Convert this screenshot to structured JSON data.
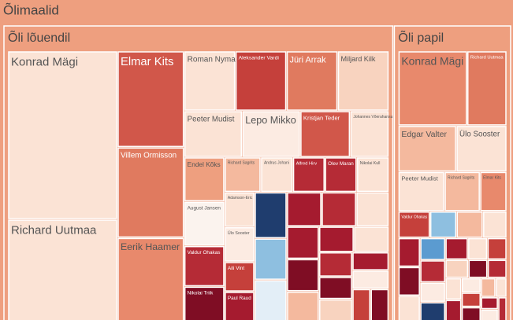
{
  "chart_data": {
    "type": "treemap",
    "title": "Õlimaalid",
    "color": "#ee9f7f",
    "groups": [
      {
        "name": "Õli lõuendil",
        "color": "#ee9f7f",
        "items": [
          {
            "name": "Konrad Mägi",
            "value": 247,
            "color": "#fbe3d5"
          },
          {
            "name": "Richard Uutmaa",
            "value": 150,
            "color": "#fbe3d5"
          },
          {
            "name": "Elmar Kits",
            "value": 86,
            "color": "#d1574a"
          },
          {
            "name": "Villem Ormisson",
            "value": 81,
            "color": "#e07a5f"
          },
          {
            "name": "Eerik Haamer",
            "value": 75,
            "color": "#e8896c"
          },
          {
            "name": "Roman Nyman",
            "value": 41,
            "color": "#fbe3d5"
          },
          {
            "name": "Aleksander Vardi",
            "value": 41,
            "color": "#c5403b"
          },
          {
            "name": "Jüri Arrak",
            "value": 41,
            "color": "#e07a5f"
          },
          {
            "name": "Miljard Kilk",
            "value": 41,
            "color": "#f8d3bf"
          },
          {
            "name": "Peeter Mudist",
            "value": 36,
            "color": "#fbe3d5"
          },
          {
            "name": "Lepo Mikko",
            "value": 36,
            "color": "#fcebe2"
          },
          {
            "name": "Kristjan Teder",
            "value": 31,
            "color": "#d1574a"
          },
          {
            "name": "Johannes Võerahansu",
            "value": 24,
            "color": "#fbe3d5"
          },
          {
            "name": "Endel Kõks",
            "value": 24,
            "color": "#ee9f7f"
          },
          {
            "name": "August Jansen",
            "value": 24,
            "color": "#fbf3ee"
          },
          {
            "name": "Valdur Ohakas",
            "value": 22,
            "color": "#b52b36"
          },
          {
            "name": "Nikolai Triik",
            "value": 19,
            "color": "#7f0d24"
          },
          {
            "name": "Richard Sagrits",
            "value": 17,
            "color": "#f4b99e"
          },
          {
            "name": "Andrus Johani",
            "value": 15,
            "color": "#fbe3d5"
          },
          {
            "name": "Alfred Hirv",
            "value": 15,
            "color": "#b52b36"
          },
          {
            "name": "Olev Maran",
            "value": 15,
            "color": "#b52b36"
          },
          {
            "name": "Nikolai Kull",
            "value": 15,
            "color": "#fbe3d5"
          },
          {
            "name": "Adamson-Eric",
            "value": 14,
            "color": "#fbe3d5"
          },
          {
            "name": "Ülo Sooster",
            "value": 14,
            "color": "#fcebe2"
          },
          {
            "name": "Aili Vint",
            "value": 12,
            "color": "#c5403b"
          },
          {
            "name": "Paul Raud",
            "value": 12,
            "color": "#a51b2f"
          },
          {
            "name": null,
            "value": 20,
            "color": "#1f3d6e"
          },
          {
            "name": null,
            "value": 18,
            "color": "#8ebfe0"
          },
          {
            "name": null,
            "value": 18,
            "color": "#e3eef7"
          },
          {
            "name": null,
            "value": 16,
            "color": "#a51b2f"
          },
          {
            "name": null,
            "value": 16,
            "color": "#b52b36"
          },
          {
            "name": null,
            "value": 15,
            "color": "#fbe3d5"
          },
          {
            "name": null,
            "value": 14,
            "color": "#a51b2f"
          },
          {
            "name": null,
            "value": 14,
            "color": "#7f0d24"
          },
          {
            "name": null,
            "value": 13,
            "color": "#f4b99e"
          },
          {
            "name": null,
            "value": 12,
            "color": "#a51b2f"
          },
          {
            "name": null,
            "value": 12,
            "color": "#fbe3d5"
          },
          {
            "name": null,
            "value": 11,
            "color": "#b52b36"
          },
          {
            "name": null,
            "value": 10,
            "color": "#7f0d24"
          },
          {
            "name": null,
            "value": 10,
            "color": "#f8d3bf"
          },
          {
            "name": null,
            "value": 9,
            "color": "#a51b2f"
          },
          {
            "name": null,
            "value": 9,
            "color": "#fcebe2"
          },
          {
            "name": null,
            "value": 8,
            "color": "#c5403b"
          },
          {
            "name": null,
            "value": 8,
            "color": "#7f0d24"
          }
        ]
      },
      {
        "name": "Õli papil",
        "color": "#ee9f7f",
        "items": [
          {
            "name": "Konrad Mägi",
            "value": 73,
            "color": "#e8896c"
          },
          {
            "name": "Richard Uutmaa",
            "value": 42,
            "color": "#e07a5f"
          },
          {
            "name": "Edgar Valter",
            "value": 38,
            "color": "#f4b99e"
          },
          {
            "name": "Ülo Sooster",
            "value": 33,
            "color": "#fbe3d5"
          },
          {
            "name": "Peeter Mudist",
            "value": 26,
            "color": "#fbe3d5"
          },
          {
            "name": "Richard Sagrits",
            "value": 20,
            "color": "#f4b99e"
          },
          {
            "name": "Elmar Kits",
            "value": 15,
            "color": "#e8896c"
          },
          {
            "name": "Valdur Ohakas",
            "value": 12,
            "color": "#c5403b"
          },
          {
            "name": null,
            "value": 10,
            "color": "#8ebfe0"
          },
          {
            "name": null,
            "value": 10,
            "color": "#f4b99e"
          },
          {
            "name": null,
            "value": 9,
            "color": "#fbe3d5"
          },
          {
            "name": null,
            "value": 9,
            "color": "#a51b2f"
          },
          {
            "name": null,
            "value": 9,
            "color": "#7f0d24"
          },
          {
            "name": null,
            "value": 8,
            "color": "#fbe3d5"
          },
          {
            "name": null,
            "value": 8,
            "color": "#5b9bd0"
          },
          {
            "name": null,
            "value": 8,
            "color": "#b52b36"
          },
          {
            "name": null,
            "value": 7,
            "color": "#fcebe2"
          },
          {
            "name": null,
            "value": 7,
            "color": "#1f3d6e"
          },
          {
            "name": null,
            "value": 7,
            "color": "#a51b2f"
          },
          {
            "name": null,
            "value": 6,
            "color": "#fbe3d5"
          },
          {
            "name": null,
            "value": 6,
            "color": "#c5403b"
          },
          {
            "name": null,
            "value": 6,
            "color": "#f8d3bf"
          },
          {
            "name": null,
            "value": 5,
            "color": "#7f0d24"
          },
          {
            "name": null,
            "value": 5,
            "color": "#b52b36"
          },
          {
            "name": null,
            "value": 5,
            "color": "#fbe3d5"
          },
          {
            "name": null,
            "value": 5,
            "color": "#a51b2f"
          },
          {
            "name": null,
            "value": 4,
            "color": "#fcebe2"
          },
          {
            "name": null,
            "value": 4,
            "color": "#c5403b"
          },
          {
            "name": null,
            "value": 4,
            "color": "#7f0d24"
          },
          {
            "name": null,
            "value": 4,
            "color": "#f4b99e"
          },
          {
            "name": null,
            "value": 3,
            "color": "#fbe3d5"
          },
          {
            "name": null,
            "value": 3,
            "color": "#a51b2f"
          },
          {
            "name": null,
            "value": 3,
            "color": "#fcebe2"
          },
          {
            "name": null,
            "value": 3,
            "color": "#b52b36"
          }
        ]
      }
    ]
  }
}
